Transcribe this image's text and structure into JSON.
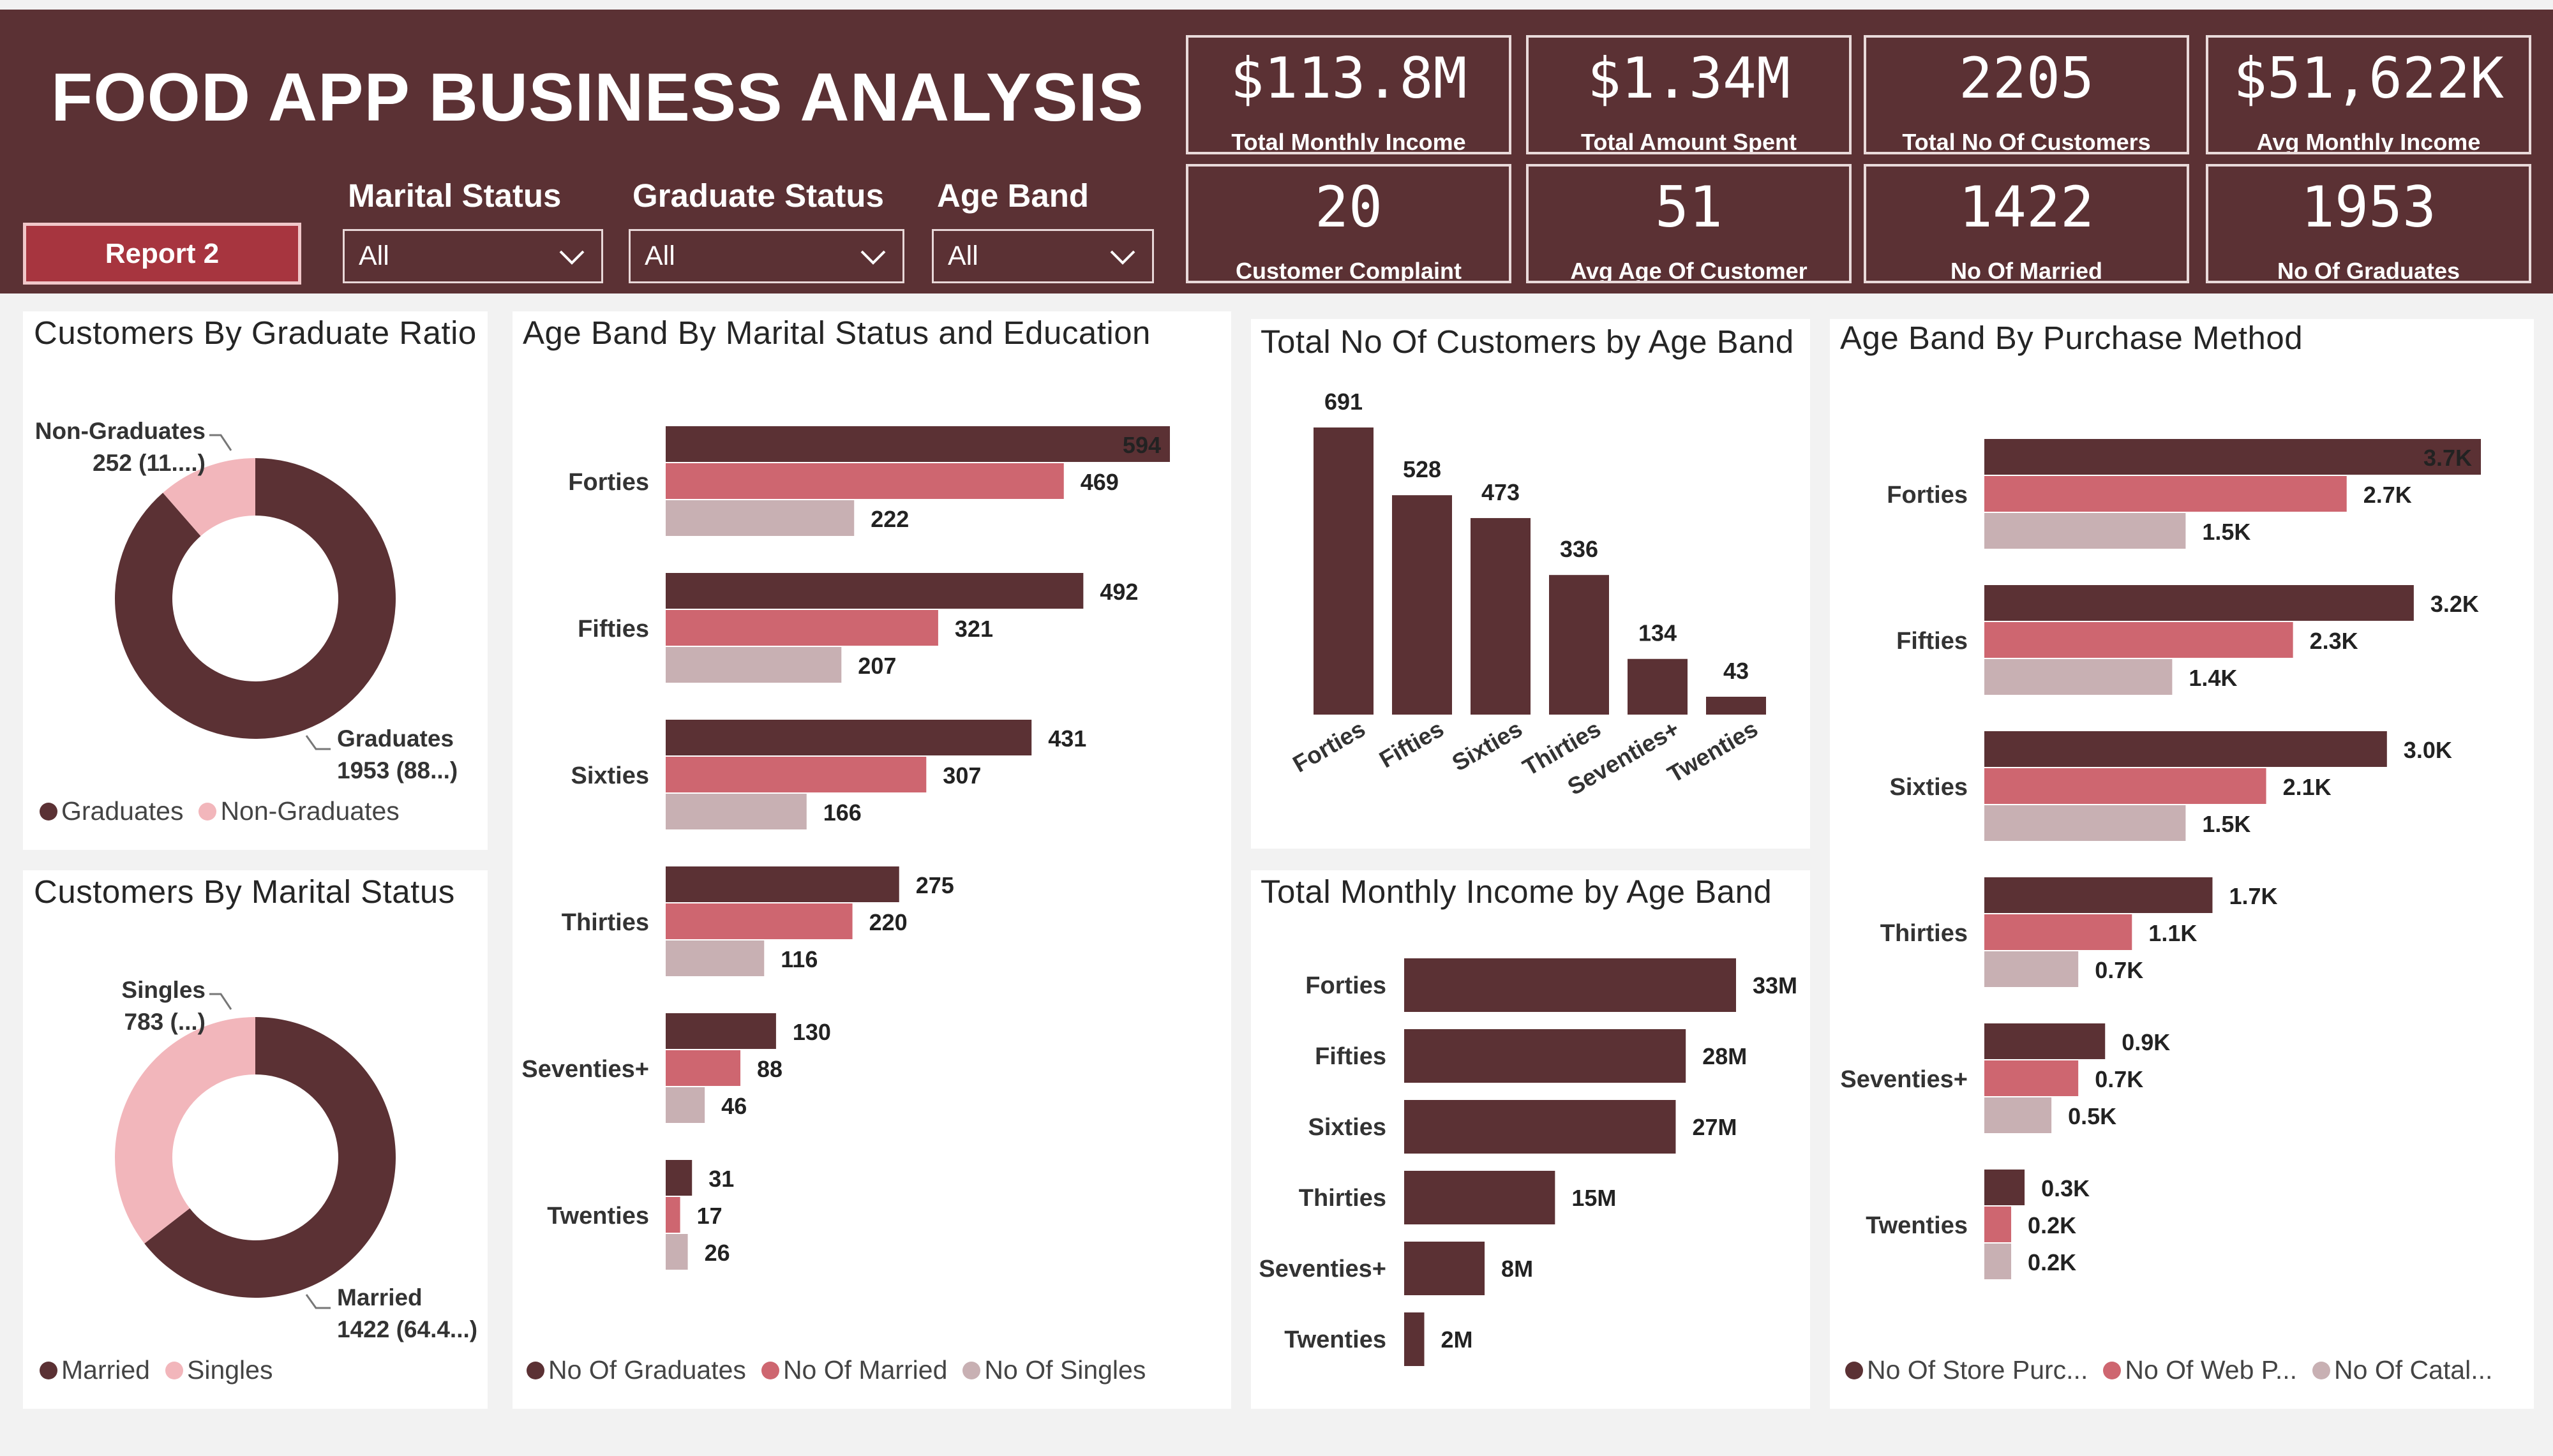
{
  "header": {
    "title": "FOOD APP BUSINESS ANALYSIS",
    "report_button": "Report 2",
    "filters": [
      {
        "label": "Marital Status",
        "value": "All"
      },
      {
        "label": "Graduate Status",
        "value": "All"
      },
      {
        "label": "Age Band",
        "value": "All"
      }
    ]
  },
  "kpis": [
    {
      "value": "$113.8M",
      "label": "Total Monthly Income"
    },
    {
      "value": "$1.34M",
      "label": "Total Amount Spent"
    },
    {
      "value": "2205",
      "label": "Total No Of Customers"
    },
    {
      "value": "$51,622K",
      "label": "Avg Monthly Income"
    },
    {
      "value": "20",
      "label": "Customer Complaint"
    },
    {
      "value": "51",
      "label": "Avg Age Of Customer"
    },
    {
      "value": "1422",
      "label": "No Of Married"
    },
    {
      "value": "1953",
      "label": "No Of Graduates"
    }
  ],
  "colors": {
    "dark": "#5b3134",
    "mid": "#ce6670",
    "light": "#c8b0b3",
    "pink": "#f2b6bb"
  },
  "panels": {
    "graduate_ratio": "Customers By Graduate Ratio",
    "marital_status": "Customers By Marital Status",
    "age_marital_edu": "Age Band By Marital Status and Education",
    "customers_age": "Total No Of Customers by Age Band",
    "income_age": "Total Monthly Income by Age Band",
    "purchase_method": "Age Band By Purchase Method"
  },
  "chart_data": [
    {
      "id": "graduate_ratio",
      "type": "pie",
      "title": "Customers By Graduate Ratio",
      "slices": [
        {
          "name": "Graduates",
          "value": 1953,
          "label": "1953 (88...)"
        },
        {
          "name": "Non-Graduates",
          "value": 252,
          "label": "252 (11....)"
        }
      ],
      "legend": "bottom-left"
    },
    {
      "id": "marital_status",
      "type": "pie",
      "title": "Customers By Marital Status",
      "slices": [
        {
          "name": "Married",
          "value": 1422,
          "label": "1422 (64.4...)"
        },
        {
          "name": "Singles",
          "value": 783,
          "label": "783 (...)"
        }
      ],
      "legend": "bottom-left"
    },
    {
      "id": "age_marital_edu",
      "type": "bar",
      "title": "Age Band By Marital Status and Education",
      "categories": [
        "Forties",
        "Fifties",
        "Sixties",
        "Thirties",
        "Seventies+",
        "Twenties"
      ],
      "series": [
        {
          "name": "No Of Graduates",
          "values": [
            594,
            492,
            431,
            275,
            130,
            31
          ]
        },
        {
          "name": "No Of Married",
          "values": [
            469,
            321,
            307,
            220,
            88,
            17
          ]
        },
        {
          "name": "No Of Singles",
          "values": [
            222,
            207,
            166,
            116,
            46,
            26
          ]
        }
      ],
      "xlim": [
        0,
        594
      ],
      "legend": "bottom-left"
    },
    {
      "id": "customers_age",
      "type": "bar",
      "title": "Total No Of Customers by Age Band",
      "categories": [
        "Forties",
        "Fifties",
        "Sixties",
        "Thirties",
        "Seventies+",
        "Twenties"
      ],
      "values": [
        691,
        528,
        473,
        336,
        134,
        43
      ],
      "ylim": [
        0,
        691
      ]
    },
    {
      "id": "income_age",
      "type": "bar",
      "title": "Total Monthly Income by Age Band",
      "categories": [
        "Forties",
        "Fifties",
        "Sixties",
        "Thirties",
        "Seventies+",
        "Twenties"
      ],
      "values": [
        33,
        28,
        27,
        15,
        8,
        2
      ],
      "value_labels": [
        "33M",
        "28M",
        "27M",
        "15M",
        "8M",
        "2M"
      ],
      "xlim": [
        0,
        33
      ]
    },
    {
      "id": "purchase_method",
      "type": "bar",
      "title": "Age Band By Purchase Method",
      "categories": [
        "Forties",
        "Fifties",
        "Sixties",
        "Thirties",
        "Seventies+",
        "Twenties"
      ],
      "series": [
        {
          "name": "No Of Store Purc...",
          "values": [
            3.7,
            3.2,
            3.0,
            1.7,
            0.9,
            0.3
          ],
          "labels": [
            "3.7K",
            "3.2K",
            "3.0K",
            "1.7K",
            "0.9K",
            "0.3K"
          ]
        },
        {
          "name": "No Of Web P...",
          "values": [
            2.7,
            2.3,
            2.1,
            1.1,
            0.7,
            0.2
          ],
          "labels": [
            "2.7K",
            "2.3K",
            "2.1K",
            "1.1K",
            "0.7K",
            "0.2K"
          ]
        },
        {
          "name": "No Of Catal...",
          "values": [
            1.5,
            1.4,
            1.5,
            0.7,
            0.5,
            0.2
          ],
          "labels": [
            "1.5K",
            "1.4K",
            "1.5K",
            "0.7K",
            "0.5K",
            "0.2K"
          ]
        }
      ],
      "xlim": [
        0,
        3.7
      ],
      "legend": "bottom-left"
    }
  ]
}
